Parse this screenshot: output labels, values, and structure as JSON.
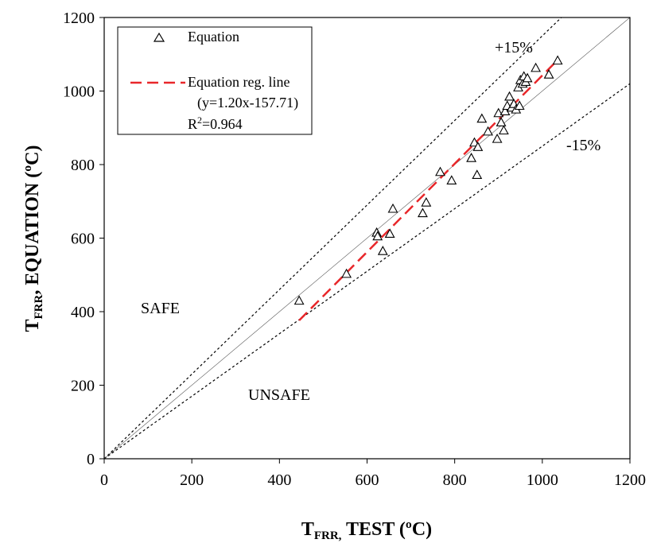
{
  "chart_data": {
    "type": "scatter",
    "xlabel_main": "T",
    "xlabel_sub": "FRR,",
    "xlabel_rest": " TEST (ºC)",
    "ylabel_main": "T",
    "ylabel_sub": "FRR",
    "ylabel_rest": ", EQUATION (ºC)",
    "xlim": [
      0,
      1200
    ],
    "ylim": [
      0,
      1200
    ],
    "xticks": [
      "0",
      "200",
      "400",
      "600",
      "800",
      "1000",
      "1200"
    ],
    "yticks": [
      "0",
      "200",
      "400",
      "600",
      "800",
      "1000",
      "1200"
    ],
    "grid": false,
    "legend_position": "top-left",
    "series": [
      {
        "name": "Equation",
        "marker": "open-triangle",
        "color": "#000000",
        "points": [
          [
            445,
            430
          ],
          [
            553,
            503
          ],
          [
            622,
            615
          ],
          [
            624,
            605
          ],
          [
            636,
            565
          ],
          [
            652,
            612
          ],
          [
            659,
            680
          ],
          [
            727,
            668
          ],
          [
            735,
            697
          ],
          [
            767,
            780
          ],
          [
            793,
            757
          ],
          [
            838,
            818
          ],
          [
            845,
            860
          ],
          [
            851,
            772
          ],
          [
            853,
            848
          ],
          [
            862,
            925
          ],
          [
            876,
            890
          ],
          [
            897,
            870
          ],
          [
            900,
            940
          ],
          [
            906,
            915
          ],
          [
            912,
            893
          ],
          [
            915,
            945
          ],
          [
            920,
            960
          ],
          [
            925,
            985
          ],
          [
            930,
            955
          ],
          [
            935,
            965
          ],
          [
            940,
            950
          ],
          [
            945,
            1010
          ],
          [
            948,
            960
          ],
          [
            950,
            1030
          ],
          [
            955,
            1020
          ],
          [
            958,
            1040
          ],
          [
            962,
            1025
          ],
          [
            966,
            1035
          ],
          [
            985,
            1063
          ],
          [
            1015,
            1045
          ],
          [
            1035,
            1083
          ]
        ]
      }
    ],
    "regression": {
      "name": "Equation reg. line",
      "equation": "(y=1.20x-157.71)",
      "r2_prefix": "R",
      "r2_sup": "2",
      "r2_suffix": "=0.964",
      "slope": 1.2,
      "intercept": -157.71,
      "x_range": [
        445,
        1035
      ],
      "color": "#e8272a"
    },
    "reference_lines": [
      {
        "label": "+15%",
        "slope": 1.15
      },
      {
        "label": "-15%",
        "slope": 0.85
      },
      {
        "label": "",
        "slope": 1.0
      }
    ],
    "annotations": [
      "SAFE",
      "UNSAFE"
    ]
  }
}
